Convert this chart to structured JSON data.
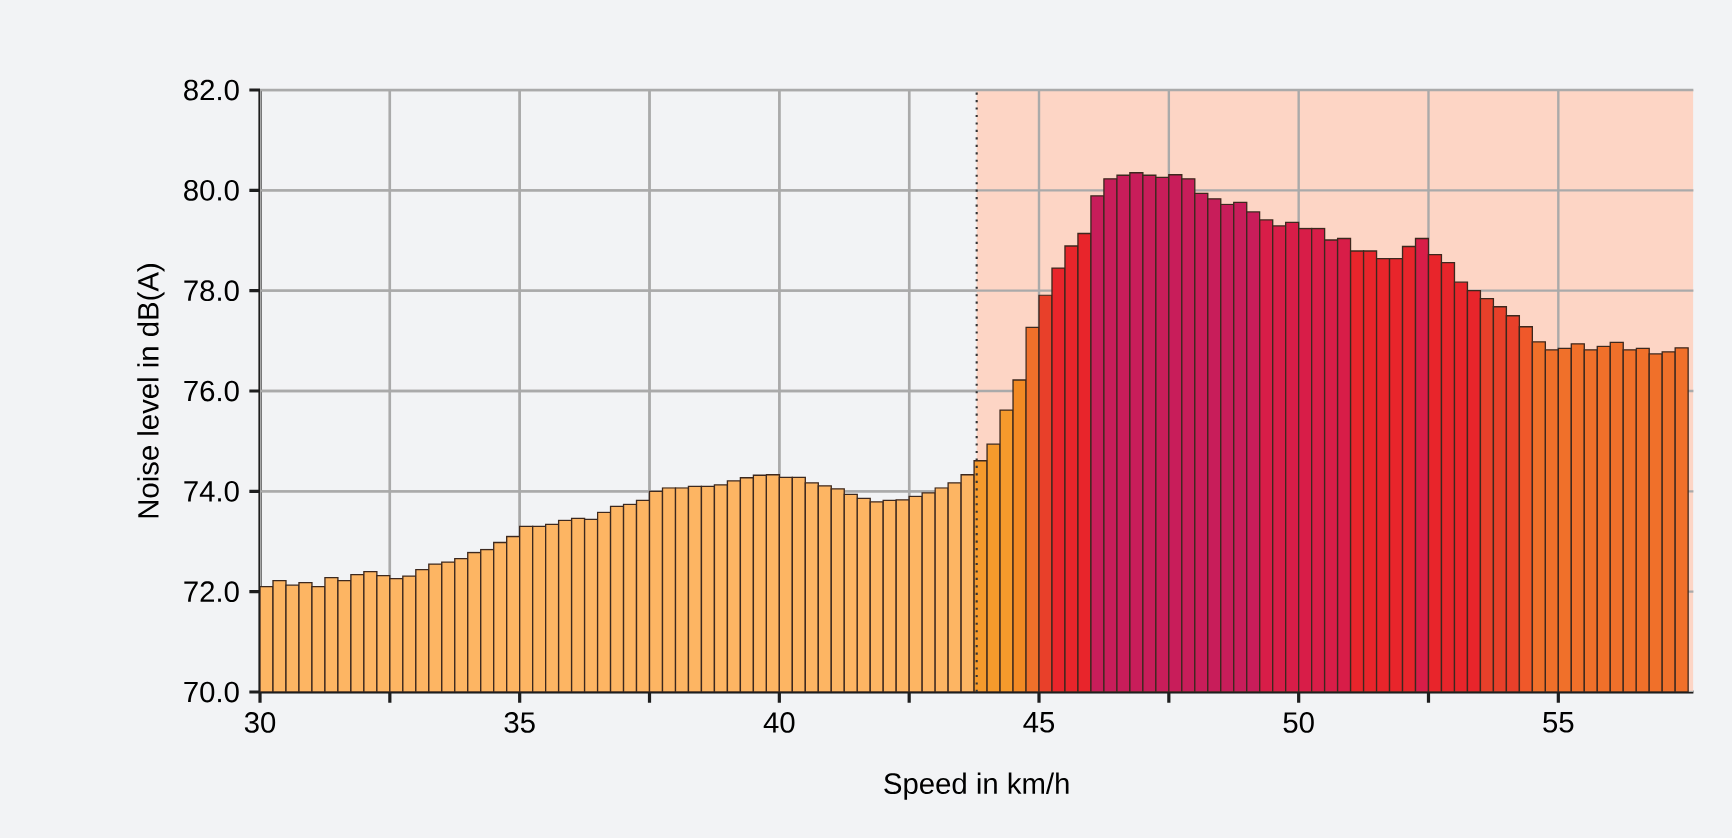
{
  "chart_data": {
    "type": "bar",
    "xlabel": "Speed in km/h",
    "ylabel": "Noise level in dB(A)",
    "x": [
      30.125,
      30.375,
      30.625,
      30.875,
      31.125,
      31.375,
      31.625,
      31.875,
      32.125,
      32.375,
      32.625,
      32.875,
      33.125,
      33.375,
      33.625,
      33.875,
      34.125,
      34.375,
      34.625,
      34.875,
      35.125,
      35.375,
      35.625,
      35.875,
      36.125,
      36.375,
      36.625,
      36.875,
      37.125,
      37.375,
      37.625,
      37.875,
      38.125,
      38.375,
      38.625,
      38.875,
      39.125,
      39.375,
      39.625,
      39.875,
      40.125,
      40.375,
      40.625,
      40.875,
      41.125,
      41.375,
      41.625,
      41.875,
      42.125,
      42.375,
      42.625,
      42.875,
      43.125,
      43.375,
      43.625,
      43.875,
      44.125,
      44.375,
      44.625,
      44.875,
      45.125,
      45.375,
      45.625,
      45.875,
      46.125,
      46.375,
      46.625,
      46.875,
      47.125,
      47.375,
      47.625,
      47.875,
      48.125,
      48.375,
      48.625,
      48.875,
      49.125,
      49.375,
      49.625,
      49.875,
      50.125,
      50.375,
      50.625,
      50.875,
      51.125,
      51.375,
      51.625,
      51.875,
      52.125,
      52.375,
      52.625,
      52.875,
      53.125,
      53.375,
      53.625,
      53.875,
      54.125,
      54.375,
      54.625,
      54.875,
      55.125,
      55.375,
      55.625,
      55.875,
      56.125,
      56.375,
      56.625,
      56.875,
      57.125,
      57.375
    ],
    "values": [
      72.1,
      72.22,
      72.13,
      72.18,
      72.1,
      72.28,
      72.22,
      72.34,
      72.4,
      72.32,
      72.26,
      72.31,
      72.44,
      72.55,
      72.59,
      72.66,
      72.78,
      72.84,
      72.98,
      73.1,
      73.3,
      73.3,
      73.34,
      73.42,
      73.46,
      73.44,
      73.58,
      73.7,
      73.74,
      73.82,
      74.0,
      74.07,
      74.07,
      74.1,
      74.1,
      74.13,
      74.21,
      74.27,
      74.32,
      74.33,
      74.28,
      74.28,
      74.17,
      74.11,
      74.05,
      73.94,
      73.86,
      73.79,
      73.82,
      73.83,
      73.9,
      73.97,
      74.07,
      74.17,
      74.33,
      74.61,
      74.94,
      75.62,
      76.22,
      77.27,
      77.91,
      78.45,
      78.89,
      79.14,
      79.89,
      80.23,
      80.3,
      80.35,
      80.3,
      80.26,
      80.31,
      80.23,
      79.94,
      79.83,
      79.72,
      79.76,
      79.57,
      79.41,
      79.29,
      79.36,
      79.24,
      79.24,
      79.01,
      79.04,
      78.79,
      78.79,
      78.64,
      78.64,
      78.88,
      79.04,
      78.72,
      78.56,
      78.17,
      78.0,
      77.84,
      77.68,
      77.5,
      77.28,
      76.98,
      76.82,
      76.85,
      76.94,
      76.82,
      76.89,
      76.97,
      76.82,
      76.85,
      76.74,
      76.78,
      76.86
    ],
    "colors": [
      "#fdb563",
      "#fdb563",
      "#fdb563",
      "#fdb563",
      "#fdb563",
      "#fdb563",
      "#fdb563",
      "#fdb563",
      "#fdb563",
      "#fdb563",
      "#fdb563",
      "#fdb563",
      "#fdb563",
      "#fdb563",
      "#fdb563",
      "#fdb563",
      "#fdb563",
      "#fdb563",
      "#fdb563",
      "#fdb563",
      "#fdb563",
      "#fdb563",
      "#fdb563",
      "#fdb563",
      "#fdb563",
      "#fdb563",
      "#fdb563",
      "#fdb563",
      "#fdb563",
      "#fdb563",
      "#fdb563",
      "#fdb563",
      "#fdb563",
      "#fdb563",
      "#fdb563",
      "#fdb563",
      "#fdb563",
      "#fdb563",
      "#fdb563",
      "#fdb563",
      "#fdb563",
      "#fdb563",
      "#fdb563",
      "#fdb563",
      "#fdb563",
      "#fdb563",
      "#fdb563",
      "#fdb563",
      "#fdb563",
      "#fdb563",
      "#fdb563",
      "#fdb563",
      "#fdb563",
      "#fdb563",
      "#fdb563",
      "#f59a2c",
      "#f59a2c",
      "#f59a2c",
      "#f28a24",
      "#f0702a",
      "#e8402a",
      "#e8252b",
      "#e8252b",
      "#e8252b",
      "#c81d5a",
      "#c81d5a",
      "#c81d5a",
      "#c81d5a",
      "#c81d5a",
      "#c81d5a",
      "#c81d5a",
      "#c81d5a",
      "#c81d5a",
      "#c81d5a",
      "#c81d5a",
      "#c81d5a",
      "#c81d5a",
      "#d81d48",
      "#d81d48",
      "#d81d48",
      "#d81d48",
      "#d81d48",
      "#d81d48",
      "#d81d48",
      "#e8252b",
      "#e8252b",
      "#e8252b",
      "#e8252b",
      "#e8252b",
      "#d81d48",
      "#e8252b",
      "#e8252b",
      "#e8252b",
      "#e8252b",
      "#e8402a",
      "#e8402a",
      "#e8402a",
      "#f0582a",
      "#f0702a",
      "#f0702a",
      "#f0702a",
      "#f0702a",
      "#f0702a",
      "#f0702a",
      "#f0702a",
      "#f0702a",
      "#f0702a",
      "#f0702a",
      "#f0702a",
      "#f0702a"
    ],
    "xlim": [
      30,
      57.6
    ],
    "ylim": [
      70,
      82
    ],
    "xticks": [
      30,
      {
        "value": 32.5,
        "label": null
      },
      35,
      {
        "value": 37.5,
        "label": null
      },
      40,
      {
        "value": 42.5,
        "label": null
      },
      45,
      {
        "value": 47.5,
        "label": null
      },
      50,
      {
        "value": 52.5,
        "label": null
      },
      55
    ],
    "yticks": [
      {
        "value": 70,
        "label": "70.0"
      },
      {
        "value": 72,
        "label": "72.0"
      },
      {
        "value": 74,
        "label": "74.0"
      },
      {
        "value": 76,
        "label": "76.0"
      },
      {
        "value": 78,
        "label": "78.0"
      },
      {
        "value": 80,
        "label": "80.0"
      },
      {
        "value": 82,
        "label": "82.0"
      }
    ],
    "grid": true,
    "bands": [
      {
        "axis": "x",
        "from": 43.8,
        "to": 57.6,
        "color": "#fdd5c5"
      }
    ],
    "ref_lines": [
      {
        "axis": "x",
        "value": 43.8,
        "line_style": "dotted",
        "color": "#333333"
      }
    ]
  }
}
